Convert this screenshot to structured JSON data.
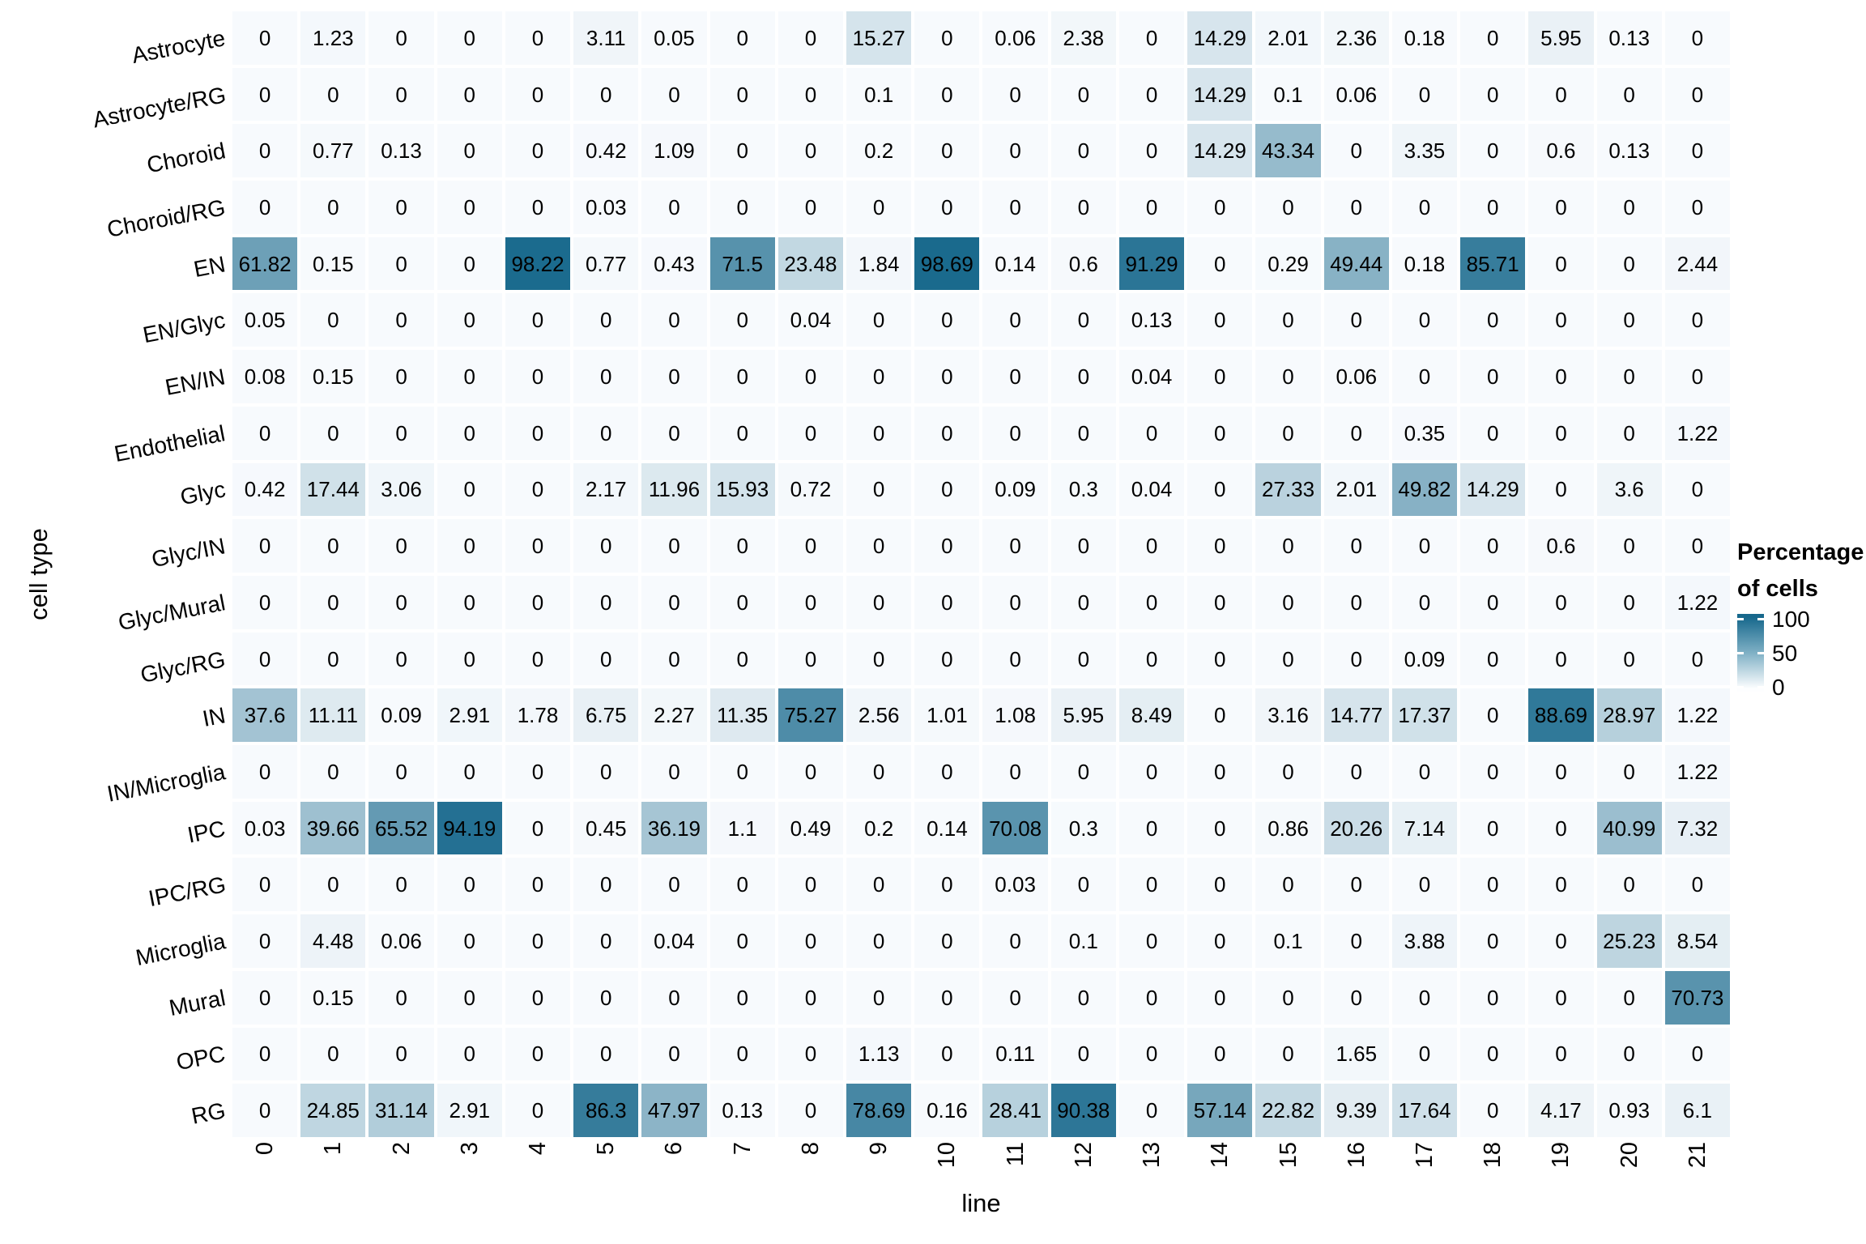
{
  "chart_data": {
    "type": "heatmap",
    "xlabel": "line",
    "ylabel": "cell type",
    "x_categories": [
      "0",
      "1",
      "2",
      "3",
      "4",
      "5",
      "6",
      "7",
      "8",
      "9",
      "10",
      "11",
      "12",
      "13",
      "14",
      "15",
      "16",
      "17",
      "18",
      "19",
      "20",
      "21"
    ],
    "y_categories": [
      "Astrocyte",
      "Astrocyte/RG",
      "Choroid",
      "Choroid/RG",
      "EN",
      "EN/Glyc",
      "EN/IN",
      "Endothelial",
      "Glyc",
      "Glyc/IN",
      "Glyc/Mural",
      "Glyc/RG",
      "IN",
      "IN/Microglia",
      "IPC",
      "IPC/RG",
      "Microglia",
      "Mural",
      "OPC",
      "RG"
    ],
    "values_percent": [
      [
        0,
        1.23,
        0,
        0,
        0,
        3.11,
        0.05,
        0,
        0,
        15.27,
        0,
        0.06,
        2.38,
        0,
        14.29,
        2.01,
        2.36,
        0.18,
        0,
        5.95,
        0.13,
        0
      ],
      [
        0,
        0,
        0,
        0,
        0,
        0,
        0,
        0,
        0,
        0.1,
        0,
        0,
        0,
        0,
        14.29,
        0.1,
        0.06,
        0,
        0,
        0,
        0,
        0
      ],
      [
        0,
        0.77,
        0.13,
        0,
        0,
        0.42,
        1.09,
        0,
        0,
        0.2,
        0,
        0,
        0,
        0,
        14.29,
        43.34,
        0,
        3.35,
        0,
        0.6,
        0.13,
        0
      ],
      [
        0,
        0,
        0,
        0,
        0,
        0.03,
        0,
        0,
        0,
        0,
        0,
        0,
        0,
        0,
        0,
        0,
        0,
        0,
        0,
        0,
        0,
        0
      ],
      [
        61.82,
        0.15,
        0,
        0,
        98.22,
        0.77,
        0.43,
        71.5,
        23.48,
        1.84,
        98.69,
        0.14,
        0.6,
        91.29,
        0,
        0.29,
        49.44,
        0.18,
        85.71,
        0,
        0,
        2.44
      ],
      [
        0.05,
        0,
        0,
        0,
        0,
        0,
        0,
        0,
        0.04,
        0,
        0,
        0,
        0,
        0.13,
        0,
        0,
        0,
        0,
        0,
        0,
        0,
        0
      ],
      [
        0.08,
        0.15,
        0,
        0,
        0,
        0,
        0,
        0,
        0,
        0,
        0,
        0,
        0,
        0.04,
        0,
        0,
        0.06,
        0,
        0,
        0,
        0,
        0
      ],
      [
        0,
        0,
        0,
        0,
        0,
        0,
        0,
        0,
        0,
        0,
        0,
        0,
        0,
        0,
        0,
        0,
        0,
        0.35,
        0,
        0,
        0,
        1.22
      ],
      [
        0.42,
        17.44,
        3.06,
        0,
        0,
        2.17,
        11.96,
        15.93,
        0.72,
        0,
        0,
        0.09,
        0.3,
        0.04,
        0,
        27.33,
        2.01,
        49.82,
        14.29,
        0,
        3.6,
        0
      ],
      [
        0,
        0,
        0,
        0,
        0,
        0,
        0,
        0,
        0,
        0,
        0,
        0,
        0,
        0,
        0,
        0,
        0,
        0,
        0,
        0.6,
        0,
        0
      ],
      [
        0,
        0,
        0,
        0,
        0,
        0,
        0,
        0,
        0,
        0,
        0,
        0,
        0,
        0,
        0,
        0,
        0,
        0,
        0,
        0,
        0,
        1.22
      ],
      [
        0,
        0,
        0,
        0,
        0,
        0,
        0,
        0,
        0,
        0,
        0,
        0,
        0,
        0,
        0,
        0,
        0,
        0.09,
        0,
        0,
        0,
        0
      ],
      [
        37.6,
        11.11,
        0.09,
        2.91,
        1.78,
        6.75,
        2.27,
        11.35,
        75.27,
        2.56,
        1.01,
        1.08,
        5.95,
        8.49,
        0,
        3.16,
        14.77,
        17.37,
        0,
        88.69,
        28.97,
        1.22
      ],
      [
        0,
        0,
        0,
        0,
        0,
        0,
        0,
        0,
        0,
        0,
        0,
        0,
        0,
        0,
        0,
        0,
        0,
        0,
        0,
        0,
        0,
        1.22
      ],
      [
        0.03,
        39.66,
        65.52,
        94.19,
        0,
        0.45,
        36.19,
        1.1,
        0.49,
        0.2,
        0.14,
        70.08,
        0.3,
        0,
        0,
        0.86,
        20.26,
        7.14,
        0,
        0,
        40.99,
        7.32
      ],
      [
        0,
        0,
        0,
        0,
        0,
        0,
        0,
        0,
        0,
        0,
        0,
        0.03,
        0,
        0,
        0,
        0,
        0,
        0,
        0,
        0,
        0,
        0
      ],
      [
        0,
        4.48,
        0.06,
        0,
        0,
        0,
        0.04,
        0,
        0,
        0,
        0,
        0,
        0.1,
        0,
        0,
        0.1,
        0,
        3.88,
        0,
        0,
        25.23,
        8.54
      ],
      [
        0,
        0.15,
        0,
        0,
        0,
        0,
        0,
        0,
        0,
        0,
        0,
        0,
        0,
        0,
        0,
        0,
        0,
        0,
        0,
        0,
        0,
        70.73
      ],
      [
        0,
        0,
        0,
        0,
        0,
        0,
        0,
        0,
        0,
        1.13,
        0,
        0.11,
        0,
        0,
        0,
        0,
        1.65,
        0,
        0,
        0,
        0,
        0
      ],
      [
        0,
        24.85,
        31.14,
        2.91,
        0,
        86.3,
        47.97,
        0.13,
        0,
        78.69,
        0.16,
        28.41,
        90.38,
        0,
        57.14,
        22.82,
        9.39,
        17.64,
        0,
        4.17,
        0.93,
        6.1
      ]
    ],
    "legend": {
      "title_line1": "Percentage",
      "title_line2": "of cells",
      "ticks": [
        "100",
        "50",
        "0"
      ],
      "tick_values": [
        100,
        50,
        0
      ]
    },
    "colors": {
      "low": "#F7FAFD",
      "high": "#17688C",
      "grid": "#FFFFFF",
      "value_text": "#000000"
    },
    "value_range": [
      0,
      100
    ]
  }
}
